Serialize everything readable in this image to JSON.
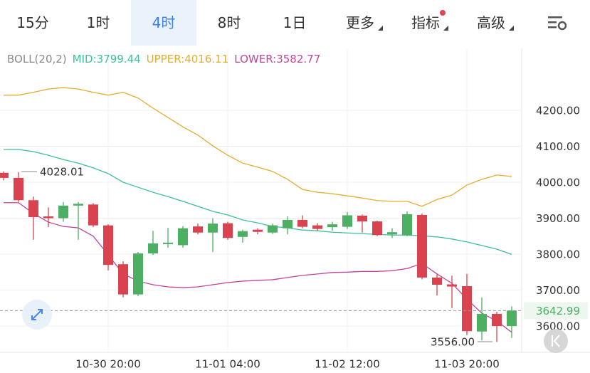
{
  "tabs": [
    {
      "label": "15分"
    },
    {
      "label": "1时"
    },
    {
      "label": "4时",
      "selected": true
    },
    {
      "label": "8时"
    },
    {
      "label": "1日"
    },
    {
      "label": "更多",
      "menu": true
    },
    {
      "label": "指标",
      "menu": true,
      "badge": true
    },
    {
      "label": "高级",
      "menu": true
    }
  ],
  "chart_data": {
    "type": "candlestick",
    "indicator": "BOLL(20,2)",
    "categories": [
      null,
      null,
      null,
      null,
      null,
      null,
      null,
      "10-30 20:00",
      null,
      null,
      null,
      null,
      null,
      null,
      null,
      "11-01 04:00",
      null,
      null,
      null,
      null,
      null,
      null,
      null,
      "11-02 12:00",
      null,
      null,
      null,
      null,
      null,
      null,
      null,
      "11-03 20:00",
      null,
      null,
      null
    ],
    "ohlc": {
      "open": [
        4026,
        4012,
        3950,
        3905,
        3900,
        3935,
        3938,
        3880,
        3772,
        3688,
        3802,
        3828,
        3825,
        3877,
        3860,
        3886,
        3848,
        3868,
        3860,
        3872,
        3895,
        3880,
        3875,
        3876,
        3907,
        3891,
        3855,
        3853,
        3909,
        3735,
        3716,
        3711,
        3585,
        3634,
        3600
      ],
      "high": [
        4030,
        4028.01,
        3960,
        3930,
        3945,
        3945,
        3942,
        3883,
        3780,
        3806,
        3865,
        3873,
        3878,
        3885,
        3900,
        3890,
        3868,
        3872,
        3885,
        3905,
        3908,
        3886,
        3890,
        3917,
        3910,
        3893,
        3872,
        3919,
        3913,
        3745,
        3740,
        3745,
        3680,
        3640,
        3655
      ],
      "low": [
        4005,
        3945,
        3840,
        3875,
        3890,
        3840,
        3875,
        3755,
        3680,
        3683,
        3798,
        3818,
        3818,
        3855,
        3806,
        3840,
        3832,
        3855,
        3856,
        3855,
        3872,
        3866,
        3865,
        3870,
        3860,
        3850,
        3845,
        3850,
        3730,
        3685,
        3650,
        3575,
        3560,
        3556,
        3567
      ],
      "close": [
        4012,
        3950,
        3903,
        3900,
        3935,
        3940,
        3880,
        3770,
        3688,
        3802,
        3830,
        3832,
        3872,
        3860,
        3885,
        3845,
        3864,
        3862,
        3880,
        3895,
        3876,
        3870,
        3883,
        3908,
        3891,
        3853,
        3861,
        3911,
        3735,
        3715,
        3710,
        3586,
        3634,
        3600,
        3642.99
      ]
    },
    "up_color": "#4caf62",
    "down_color": "#d9434f",
    "series": [
      {
        "name": "MID:3799.44",
        "color": "#3dbf9c",
        "values": [
          4091,
          4091,
          4085,
          4075,
          4063,
          4053,
          4040,
          4024,
          4000,
          3986,
          3972,
          3960,
          3947,
          3933,
          3919,
          3909,
          3895,
          3887,
          3877,
          3873,
          3867,
          3865,
          3861,
          3859,
          3857,
          3855,
          3853,
          3853,
          3851,
          3848,
          3842,
          3834,
          3824,
          3814,
          3799.44
        ]
      },
      {
        "name": "UPPER:4016.11",
        "color": "#e5ac2e",
        "values": [
          4242,
          4242,
          4250,
          4259,
          4263,
          4259,
          4250,
          4242,
          4250,
          4234,
          4206,
          4180,
          4154,
          4131,
          4101,
          4075,
          4053,
          4042,
          4030,
          4008,
          3980,
          3972,
          3968,
          3962,
          3956,
          3949,
          3947,
          3947,
          3933,
          3952,
          3964,
          3992,
          4008,
          4020,
          4016.11
        ]
      },
      {
        "name": "LOWER:3582.77",
        "color": "#c2449a",
        "values": [
          3943,
          3943,
          3913,
          3889,
          3877,
          3873,
          3850,
          3798,
          3745,
          3725,
          3715,
          3709,
          3707,
          3709,
          3715,
          3721,
          3725,
          3727,
          3729,
          3735,
          3741,
          3745,
          3749,
          3750,
          3752,
          3752,
          3754,
          3760,
          3774,
          3745,
          3719,
          3675,
          3636,
          3614,
          3582.77
        ]
      }
    ],
    "annotations": [
      "4028.01",
      "3556.00"
    ],
    "last_price": 3642.99,
    "ylim": [
      3527,
      4372
    ],
    "yticks": [
      {
        "value": 3600,
        "label": "3600.00"
      },
      {
        "value": 3700,
        "label": "3700.00"
      },
      {
        "value": 3800,
        "label": "3800.00"
      },
      {
        "value": 3900,
        "label": "3900.00"
      },
      {
        "value": 4000,
        "label": "4000.00"
      },
      {
        "value": 4100,
        "label": "4100.00"
      },
      {
        "value": 4200,
        "label": "4200.00"
      }
    ],
    "grid": true
  }
}
